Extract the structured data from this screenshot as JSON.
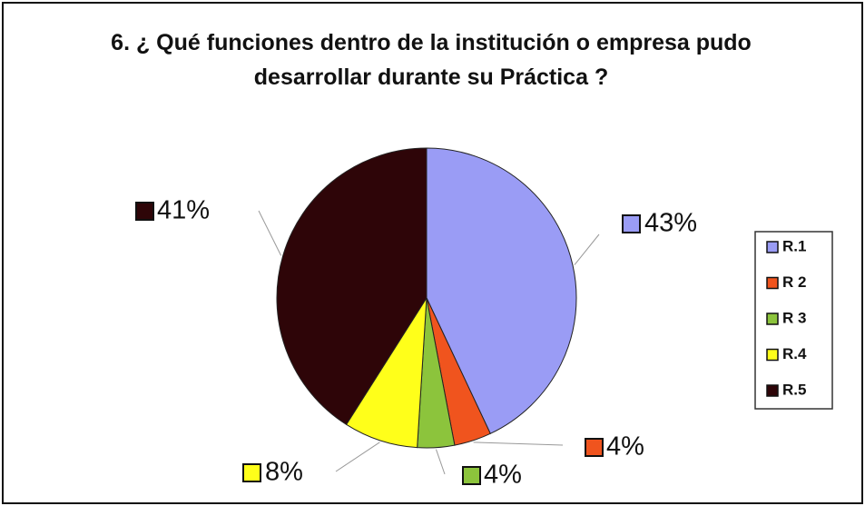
{
  "chart_data": {
    "type": "pie",
    "title": "6. ¿ Qué funciones dentro de la institución o empresa pudo desarrollar durante su Práctica ?",
    "categories": [
      "R.1",
      "R 2",
      "R 3",
      "R.4",
      "R.5"
    ],
    "values": [
      43,
      4,
      4,
      8,
      41
    ],
    "value_labels": [
      "43%",
      "4%",
      "4%",
      "8%",
      "41%"
    ],
    "colors": [
      "#9a9cf5",
      "#f0541e",
      "#8cc43c",
      "#ffff1a",
      "#2e0508"
    ],
    "legend": "right"
  }
}
